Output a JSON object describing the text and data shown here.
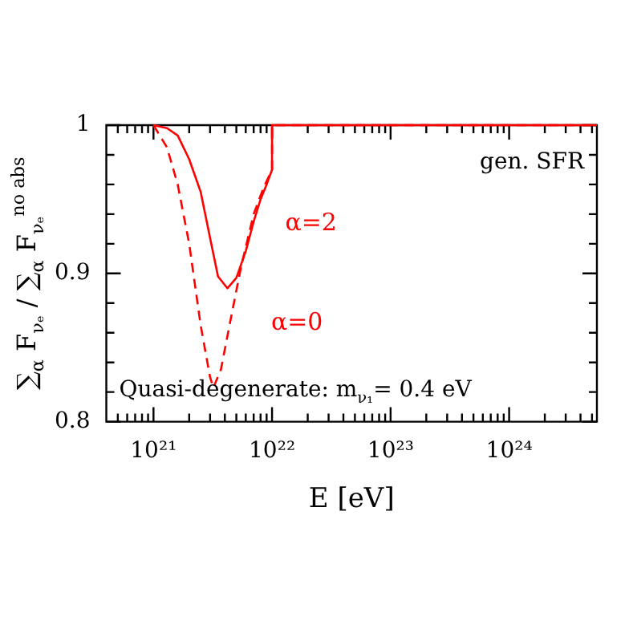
{
  "chart_data": {
    "type": "line",
    "xlabel": "E [eV]",
    "ylabel": "∑$_{α}$ F$_{νₑ}$ / ∑$_{α}$ F$_{νₑ}$$^{no abs}$",
    "log": "x",
    "legend": false,
    "grid": false,
    "marker": "none",
    "xlim": [
      4e+20,
      5.5e+24
    ],
    "ylim": [
      0.8,
      1
    ],
    "xticks": [
      {
        "value": 5e+20,
        "label": null
      },
      {
        "value": 6e+20,
        "label": null
      },
      {
        "value": 7e+20,
        "label": null
      },
      {
        "value": 8e+20,
        "label": null
      },
      {
        "value": 9e+20,
        "label": null
      },
      {
        "value": 1e+21,
        "label": "10²¹"
      },
      {
        "value": 2e+21,
        "label": null
      },
      {
        "value": 3e+21,
        "label": null
      },
      {
        "value": 4e+21,
        "label": null
      },
      {
        "value": 5e+21,
        "label": null
      },
      {
        "value": 6e+21,
        "label": null
      },
      {
        "value": 7e+21,
        "label": null
      },
      {
        "value": 8e+21,
        "label": null
      },
      {
        "value": 9e+21,
        "label": null
      },
      {
        "value": 1e+22,
        "label": "10²²"
      },
      {
        "value": 2e+22,
        "label": null
      },
      {
        "value": 3e+22,
        "label": null
      },
      {
        "value": 4e+22,
        "label": null
      },
      {
        "value": 5e+22,
        "label": null
      },
      {
        "value": 6e+22,
        "label": null
      },
      {
        "value": 7e+22,
        "label": null
      },
      {
        "value": 8e+22,
        "label": null
      },
      {
        "value": 9e+22,
        "label": null
      },
      {
        "value": 1e+23,
        "label": "10²³"
      },
      {
        "value": 2e+23,
        "label": null
      },
      {
        "value": 3e+23,
        "label": null
      },
      {
        "value": 4e+23,
        "label": null
      },
      {
        "value": 5e+23,
        "label": null
      },
      {
        "value": 6e+23,
        "label": null
      },
      {
        "value": 7e+23,
        "label": null
      },
      {
        "value": 8e+23,
        "label": null
      },
      {
        "value": 9e+23,
        "label": null
      },
      {
        "value": 1e+24,
        "label": "10²⁴"
      },
      {
        "value": 2e+24,
        "label": null
      },
      {
        "value": 3e+24,
        "label": null
      },
      {
        "value": 4e+24,
        "label": null
      },
      {
        "value": 5e+24,
        "label": null
      }
    ],
    "yticks": [
      0.8,
      {
        "value": 0.82,
        "label": null
      },
      {
        "value": 0.84,
        "label": null
      },
      {
        "value": 0.86,
        "label": null
      },
      {
        "value": 0.88,
        "label": null
      },
      0.9,
      {
        "value": 0.92,
        "label": null
      },
      {
        "value": 0.94,
        "label": null
      },
      {
        "value": 0.96,
        "label": null
      },
      {
        "value": 0.98,
        "label": null
      },
      1
    ],
    "series": [
      {
        "name": "α=2",
        "color": "#ff0000",
        "line_style": "solid",
        "x": [
          1e+21,
          1.3e+21,
          1.6e+21,
          2e+21,
          2.5e+21,
          3e+21,
          3.5e+21,
          4.2e+21,
          5e+21,
          6e+21,
          7e+21,
          8e+21,
          9e+21,
          1e+22,
          1e+22,
          5.5e+24
        ],
        "values": [
          1.0,
          0.998,
          0.993,
          0.977,
          0.955,
          0.924,
          0.898,
          0.89,
          0.897,
          0.915,
          0.935,
          0.95,
          0.96,
          0.97,
          1.0,
          1.0
        ]
      },
      {
        "name": "α=0",
        "color": "#ff0000",
        "line_style": "dashed",
        "x": [
          1e+21,
          1.3e+21,
          1.6e+21,
          2e+21,
          2.5e+21,
          3e+21,
          3.2e+21,
          3.7e+21,
          4.5e+21,
          5.5e+21,
          7e+21,
          8.5e+21,
          1e+22,
          1e+22,
          5.5e+24
        ],
        "values": [
          1.0,
          0.985,
          0.96,
          0.92,
          0.865,
          0.83,
          0.823,
          0.835,
          0.87,
          0.905,
          0.94,
          0.958,
          0.97,
          1.0,
          1.0
        ]
      }
    ],
    "annotations": [
      "gen. SFR",
      "Quasi-degenerate: m$_{ν₁}$= 0.4 eV"
    ]
  }
}
